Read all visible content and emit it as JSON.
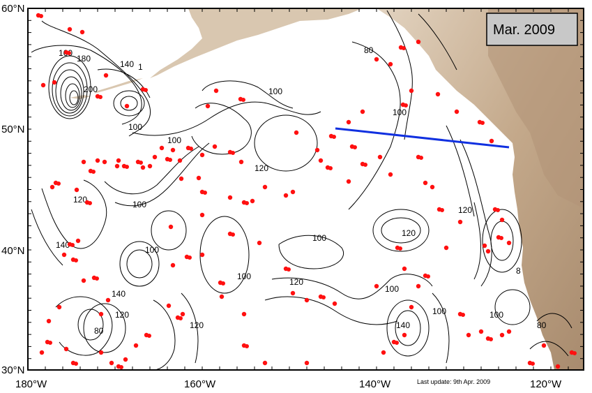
{
  "date_label": "Mar. 2009",
  "last_update": "Last update: 9th Apr. 2009",
  "lat_labels": [
    "60°N",
    "50°N",
    "40°N",
    "30°N"
  ],
  "lon_labels": [
    "180°W",
    "160°W",
    "140°W",
    "120°W"
  ],
  "contour_labels": {
    "l160": "160",
    "l180": "180",
    "l140a": "140",
    "l200": "200",
    "l1": "1",
    "l100a": "100",
    "l100b": "100",
    "l80a": "80",
    "l100c": "100",
    "l120a": "120",
    "l100d": "100",
    "l120b": "120",
    "l100e": "100",
    "l120c": "120",
    "l140b": "140",
    "l100f": "100",
    "l100g": "100",
    "l120d": "120",
    "l100h": "100",
    "l120e": "120",
    "l140c": "140",
    "l100i": "100",
    "l80b": "8",
    "l120f": "120",
    "l140d": "140",
    "l120g": "120",
    "l80c": "80",
    "l80d": "80",
    "l100j": "100",
    "l100k": "100"
  },
  "colors": {
    "land": "#c8b29a",
    "land_dark": "#a8896b",
    "floats": "#ff1010",
    "section_line": "#1030e0",
    "date_box": "#c8c8c8"
  }
}
